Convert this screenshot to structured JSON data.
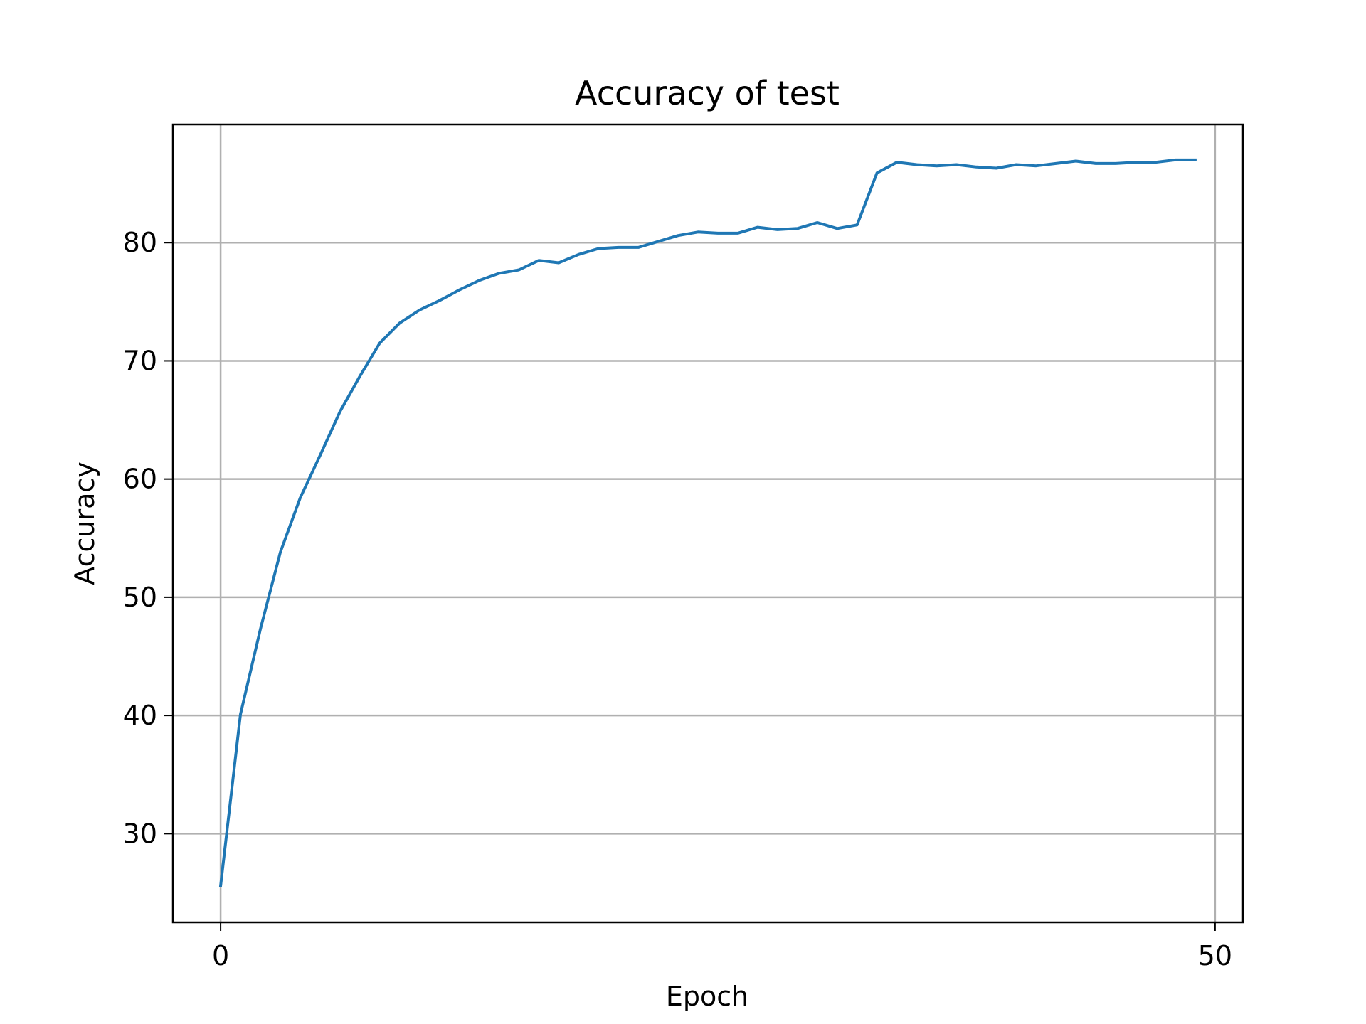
{
  "chart_data": {
    "type": "line",
    "title": "Accuracy of test",
    "xlabel": "Epoch",
    "ylabel": "Accuracy",
    "xlim": [
      -2.4,
      51.4
    ],
    "ylim": [
      22.5,
      90.0
    ],
    "xticks": [
      0,
      50
    ],
    "yticks": [
      30,
      40,
      50,
      60,
      70,
      80
    ],
    "grid": true,
    "series": [
      {
        "color": "#1f77b4",
        "x": [
          0,
          1,
          2,
          3,
          4,
          5,
          6,
          7,
          8,
          9,
          10,
          11,
          12,
          13,
          14,
          15,
          16,
          17,
          18,
          19,
          20,
          21,
          22,
          23,
          24,
          25,
          26,
          27,
          28,
          29,
          30,
          31,
          32,
          33,
          34,
          35,
          36,
          37,
          38,
          39,
          40,
          41,
          42,
          43,
          44,
          45,
          46,
          47,
          48,
          49
        ],
        "y": [
          25.6,
          40.1,
          47.3,
          53.8,
          58.4,
          62.0,
          65.7,
          68.7,
          71.5,
          73.2,
          74.3,
          75.1,
          76.0,
          76.8,
          77.4,
          77.7,
          78.5,
          78.3,
          79.0,
          79.5,
          79.6,
          79.6,
          80.1,
          80.6,
          80.9,
          80.8,
          80.8,
          81.3,
          81.1,
          81.2,
          81.7,
          81.2,
          81.5,
          85.9,
          86.8,
          86.6,
          86.5,
          86.6,
          86.4,
          86.3,
          86.6,
          86.5,
          86.7,
          86.9,
          86.7,
          86.7,
          86.8,
          86.8,
          87.0,
          87.0
        ]
      }
    ]
  }
}
